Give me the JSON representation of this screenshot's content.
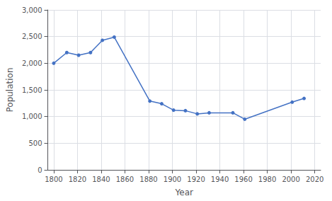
{
  "chart_data": {
    "type": "line",
    "x": [
      1800,
      1811,
      1821,
      1831,
      1841,
      1851,
      1881,
      1891,
      1901,
      1911,
      1921,
      1931,
      1951,
      1961,
      2001,
      2011
    ],
    "values": [
      2000,
      2200,
      2150,
      2200,
      2430,
      2490,
      1290,
      1240,
      1120,
      1110,
      1050,
      1070,
      1070,
      950,
      1270,
      1340
    ],
    "color": "#4472C4",
    "marker": "circle",
    "xlabel": "Year",
    "ylabel": "Population",
    "xlim": [
      1795,
      2025
    ],
    "ylim": [
      0,
      3000
    ],
    "xticks": [
      1800,
      1820,
      1840,
      1860,
      1880,
      1900,
      1920,
      1940,
      1960,
      1980,
      2000,
      2020
    ],
    "yticks": [
      0,
      500,
      {
        "value": 1000,
        "label": "1,000"
      },
      {
        "value": 1500,
        "label": "1,500"
      },
      {
        "value": 2000,
        "label": "2,000"
      },
      {
        "value": 2500,
        "label": "2,500"
      },
      {
        "value": 3000,
        "label": "3,000"
      }
    ],
    "grid": true
  }
}
